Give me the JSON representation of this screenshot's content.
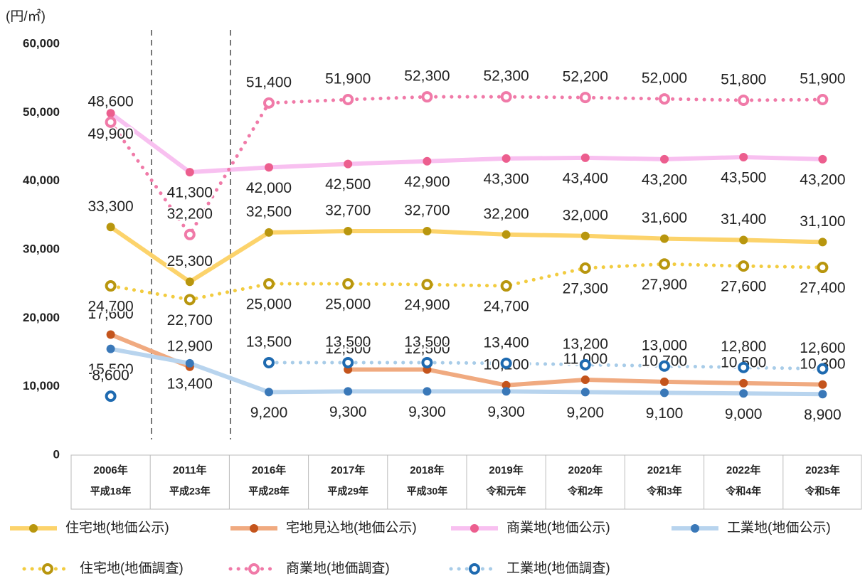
{
  "chart_data": {
    "type": "line",
    "unit_label": "(円/㎡)",
    "categories": [
      "2006年",
      "2011年",
      "2016年",
      "2017年",
      "2018年",
      "2019年",
      "2020年",
      "2021年",
      "2022年",
      "2023年"
    ],
    "era_labels": [
      "平成18年",
      "平成23年",
      "平成28年",
      "平成29年",
      "平成30年",
      "令和元年",
      "令和2年",
      "令和3年",
      "令和4年",
      "令和5年"
    ],
    "ylim": [
      0,
      60000
    ],
    "yticks": [
      0,
      {
        "value": 10000,
        "label": "10,000"
      },
      {
        "value": 20000,
        "label": "20,000"
      },
      {
        "value": 30000,
        "label": "30,000"
      },
      {
        "value": 40000,
        "label": "40,000"
      },
      {
        "value": 50000,
        "label": "50,000"
      },
      {
        "value": 60000,
        "label": "60,000"
      }
    ],
    "series": [
      {
        "name": "住宅地(地価公示)",
        "style": "solid",
        "color": "#fcd36b",
        "marker_color": "#b8960e",
        "label_color": "#8a7415",
        "label_pos": "above",
        "values": [
          33300,
          25300,
          32500,
          32700,
          32700,
          32200,
          32000,
          31600,
          31400,
          31100
        ],
        "value_labels": [
          "33,300",
          "25,300",
          "32,500",
          "32,700",
          "32,700",
          "32,200",
          "32,000",
          "31,600",
          "31,400",
          "31,100"
        ]
      },
      {
        "name": "宅地見込地(地価公示)",
        "style": "solid",
        "color": "#f0aa80",
        "marker_color": "#c4541c",
        "label_color": "#8a7415",
        "label_pos": "above",
        "values": [
          17600,
          12900,
          null,
          12500,
          12500,
          10200,
          11000,
          10700,
          10500,
          10300
        ],
        "value_labels": [
          "17,600",
          "12,900",
          null,
          "12,500",
          "12,500",
          "10,200",
          "11,000",
          "10,700",
          "10,500",
          "10,300"
        ]
      },
      {
        "name": "商業地(地価公示)",
        "style": "solid",
        "color": "#f8c0f0",
        "marker_color": "#ec5e8e",
        "label_color": "#e0202a",
        "label_pos": "below",
        "values": [
          49900,
          41300,
          42000,
          42500,
          42900,
          43300,
          43400,
          43200,
          43500,
          43200
        ],
        "value_labels": [
          "49,900",
          "41,300",
          "42,000",
          "42,500",
          "42,900",
          "43,300",
          "43,400",
          "43,200",
          "43,500",
          "43,200"
        ]
      },
      {
        "name": "工業地(地価公示)",
        "style": "solid",
        "color": "#b8d4ee",
        "marker_color": "#3a78b8",
        "label_color": "#1a8ab0",
        "label_pos": "below",
        "values": [
          15500,
          13400,
          9200,
          9300,
          9300,
          9300,
          9200,
          9100,
          9000,
          8900
        ],
        "value_labels": [
          "15,500",
          "13,400",
          "9,200",
          "9,300",
          "9,300",
          "9,300",
          "9,200",
          "9,100",
          "9,000",
          "8,900"
        ]
      },
      {
        "name": "住宅地(地価調査)",
        "style": "dotted",
        "color": "#f2cc40",
        "marker_color": "#b8960e",
        "label_color": "#8a7415",
        "label_pos": "below",
        "values": [
          24700,
          22700,
          25000,
          25000,
          24900,
          24700,
          27300,
          27900,
          27600,
          27400
        ],
        "value_labels": [
          "24,700",
          "22,700",
          "25,000",
          "25,000",
          "24,900",
          "24,700",
          "27,300",
          "27,900",
          "27,600",
          "27,400"
        ]
      },
      {
        "name": "商業地(地価調査)",
        "style": "dotted",
        "color": "#f07aa8",
        "marker_color": "#f07aa8",
        "label_color": "#e0202a",
        "label_pos": "above",
        "values": [
          48600,
          32200,
          51400,
          51900,
          52300,
          52300,
          52200,
          52000,
          51800,
          51900
        ],
        "value_labels": [
          "48,600",
          "32,200",
          "51,400",
          "51,900",
          "52,300",
          "52,300",
          "52,200",
          "52,000",
          "51,800",
          "51,900"
        ]
      },
      {
        "name": "工業地(地価調査)",
        "style": "dotted",
        "color": "#a8cce8",
        "marker_color": "#1e6ab0",
        "label_color": "#1a2a6a",
        "label_pos": "above",
        "values": [
          8600,
          null,
          13500,
          13500,
          13500,
          13400,
          13200,
          13000,
          12800,
          12600
        ],
        "value_labels": [
          "8,600",
          null,
          "13,500",
          "13,500",
          "13,500",
          "13,400",
          "13,200",
          "13,000",
          "12,800",
          "12,600"
        ]
      }
    ]
  }
}
